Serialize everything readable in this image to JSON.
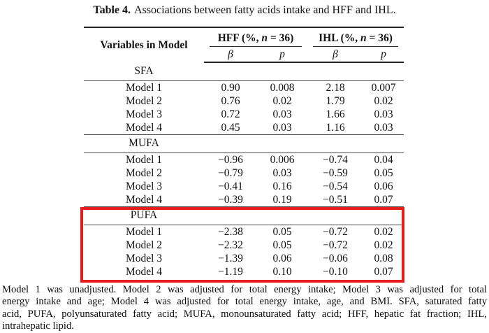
{
  "title": {
    "label": "Table 4.",
    "text": "Associations between fatty acids intake and HFF and IHL."
  },
  "table": {
    "variables_header": "Variables in Model",
    "groups": [
      {
        "pre": "HFF (%, ",
        "italic": "n",
        "post": " = 36)"
      },
      {
        "pre": "IHL (%, ",
        "italic": "n",
        "post": " = 36)"
      }
    ],
    "subheaders": [
      "β",
      "p",
      "β",
      "p"
    ],
    "sections": [
      {
        "name": "SFA",
        "highlighted": false,
        "rows": [
          {
            "label": "Model 1",
            "values": [
              "0.90",
              "0.008",
              "2.18",
              "0.007"
            ]
          },
          {
            "label": "Model 2",
            "values": [
              "0.76",
              "0.02",
              "1.79",
              "0.02"
            ]
          },
          {
            "label": "Model 3",
            "values": [
              "0.72",
              "0.03",
              "1.66",
              "0.03"
            ]
          },
          {
            "label": "Model 4",
            "values": [
              "0.45",
              "0.03",
              "1.16",
              "0.03"
            ]
          }
        ]
      },
      {
        "name": "MUFA",
        "highlighted": false,
        "rows": [
          {
            "label": "Model 1",
            "values": [
              "−0.96",
              "0.006",
              "−0.74",
              "0.04"
            ]
          },
          {
            "label": "Model 2",
            "values": [
              "−0.79",
              "0.03",
              "−0.59",
              "0.05"
            ]
          },
          {
            "label": "Model 3",
            "values": [
              "−0.41",
              "0.16",
              "−0.54",
              "0.06"
            ]
          },
          {
            "label": "Model 4",
            "values": [
              "−0.39",
              "0.19",
              "−0.51",
              "0.07"
            ]
          }
        ]
      },
      {
        "name": "PUFA",
        "highlighted": true,
        "rows": [
          {
            "label": "Model 1",
            "values": [
              "−2.38",
              "0.05",
              "−0.72",
              "0.02"
            ]
          },
          {
            "label": "Model 2",
            "values": [
              "−2.32",
              "0.05",
              "−0.72",
              "0.02"
            ]
          },
          {
            "label": "Model 3",
            "values": [
              "−1.39",
              "0.06",
              "−0.06",
              "0.08"
            ]
          },
          {
            "label": "Model 4",
            "values": [
              "−1.19",
              "0.10",
              "−0.10",
              "0.07"
            ]
          }
        ]
      }
    ]
  },
  "highlight": {
    "section": "PUFA",
    "border_color": "#e41d1d"
  },
  "footnote": {
    "lines": [
      "Model 1 was unadjusted. Model 2 was adjusted for total energy intake; Model 3 was adjusted for total",
      "energy intake and age; Model 4 was adjusted for total energy intake, age, and BMI. SFA, saturated fatty",
      "acid, PUFA, polyunsaturated fatty acid; MUFA, monounsaturated fatty acid; HFF, hepatic fat fraction; IHL,",
      "intrahepatic lipid."
    ]
  },
  "colors": {
    "background": "#ffffff",
    "text": "#111111",
    "rule_thick": "#262626",
    "rule_thin": "#4a4a4a",
    "highlight_red": "#e41d1d"
  }
}
